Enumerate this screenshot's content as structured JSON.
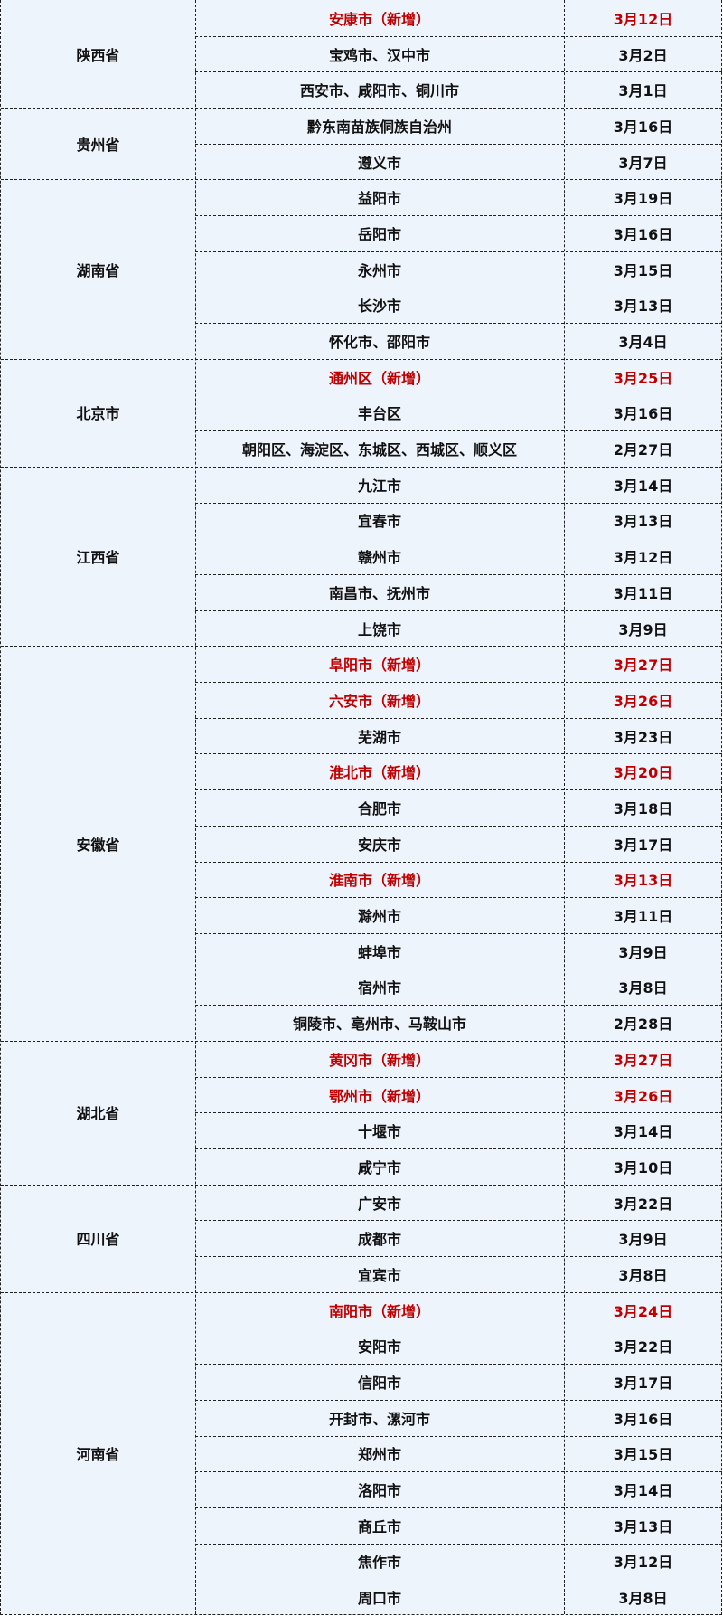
{
  "colors": {
    "background": "#eef4fc",
    "highlight": "#c00000",
    "text": "#111111"
  },
  "groups": [
    {
      "province": "陕西省",
      "rows": [
        {
          "area": "安康市（新增）",
          "date": "3月12日",
          "new": true
        },
        {
          "area": "宝鸡市、汉中市",
          "date": "3月2日"
        },
        {
          "area": "西安市、咸阳市、铜川市",
          "date": "3月1日"
        }
      ]
    },
    {
      "province": "贵州省",
      "rows": [
        {
          "area": "黔东南苗族侗族自治州",
          "date": "3月16日"
        },
        {
          "area": "遵义市",
          "date": "3月7日"
        }
      ]
    },
    {
      "province": "湖南省",
      "rows": [
        {
          "area": "益阳市",
          "date": "3月19日"
        },
        {
          "area": "岳阳市",
          "date": "3月16日"
        },
        {
          "area": "永州市",
          "date": "3月15日"
        },
        {
          "area": "长沙市",
          "date": "3月13日"
        },
        {
          "area": "怀化市、邵阳市",
          "date": "3月4日"
        }
      ]
    },
    {
      "province": "北京市",
      "rows": [
        {
          "area": "通州区（新增）",
          "date": "3月25日",
          "new": true
        },
        {
          "area": "丰台区",
          "date": "3月16日"
        },
        {
          "area": "朝阳区、海淀区、东城区、西城区、顺义区",
          "date": "2月27日"
        }
      ]
    },
    {
      "province": "江西省",
      "rows": [
        {
          "area": "九江市",
          "date": "3月14日"
        },
        {
          "area": "宜春市",
          "date": "3月13日"
        },
        {
          "area": "赣州市",
          "date": "3月12日"
        },
        {
          "area": "南昌市、抚州市",
          "date": "3月11日"
        },
        {
          "area": "上饶市",
          "date": "3月9日"
        }
      ]
    },
    {
      "province": "安徽省",
      "rows": [
        {
          "area": "阜阳市（新增）",
          "date": "3月27日",
          "new": true
        },
        {
          "area": "六安市（新增）",
          "date": "3月26日",
          "new": true
        },
        {
          "area": "芜湖市",
          "date": "3月23日"
        },
        {
          "area": "淮北市（新增）",
          "date": "3月20日",
          "new": true
        },
        {
          "area": "合肥市",
          "date": "3月18日"
        },
        {
          "area": "安庆市",
          "date": "3月17日"
        },
        {
          "area": "淮南市（新增）",
          "date": "3月13日",
          "new": true
        },
        {
          "area": "滁州市",
          "date": "3月11日"
        },
        {
          "area": "蚌埠市",
          "date": "3月9日"
        },
        {
          "area": "宿州市",
          "date": "3月8日"
        },
        {
          "area": "铜陵市、亳州市、马鞍山市",
          "date": "2月28日"
        }
      ]
    },
    {
      "province": "湖北省",
      "rows": [
        {
          "area": "黄冈市（新增）",
          "date": "3月27日",
          "new": true
        },
        {
          "area": "鄂州市（新增）",
          "date": "3月26日",
          "new": true
        },
        {
          "area": "十堰市",
          "date": "3月14日"
        },
        {
          "area": "咸宁市",
          "date": "3月10日"
        }
      ]
    },
    {
      "province": "四川省",
      "rows": [
        {
          "area": "广安市",
          "date": "3月22日"
        },
        {
          "area": "成都市",
          "date": "3月9日"
        },
        {
          "area": "宜宾市",
          "date": "3月8日"
        }
      ]
    },
    {
      "province": "河南省",
      "rows": [
        {
          "area": "南阳市（新增）",
          "date": "3月24日",
          "new": true
        },
        {
          "area": "安阳市",
          "date": "3月22日"
        },
        {
          "area": "信阳市",
          "date": "3月17日"
        },
        {
          "area": "开封市、漯河市",
          "date": "3月16日"
        },
        {
          "area": "郑州市",
          "date": "3月15日"
        },
        {
          "area": "洛阳市",
          "date": "3月14日"
        },
        {
          "area": "商丘市",
          "date": "3月13日"
        },
        {
          "area": "焦作市",
          "date": "3月12日"
        },
        {
          "area": "周口市",
          "date": "3月8日"
        }
      ]
    }
  ]
}
